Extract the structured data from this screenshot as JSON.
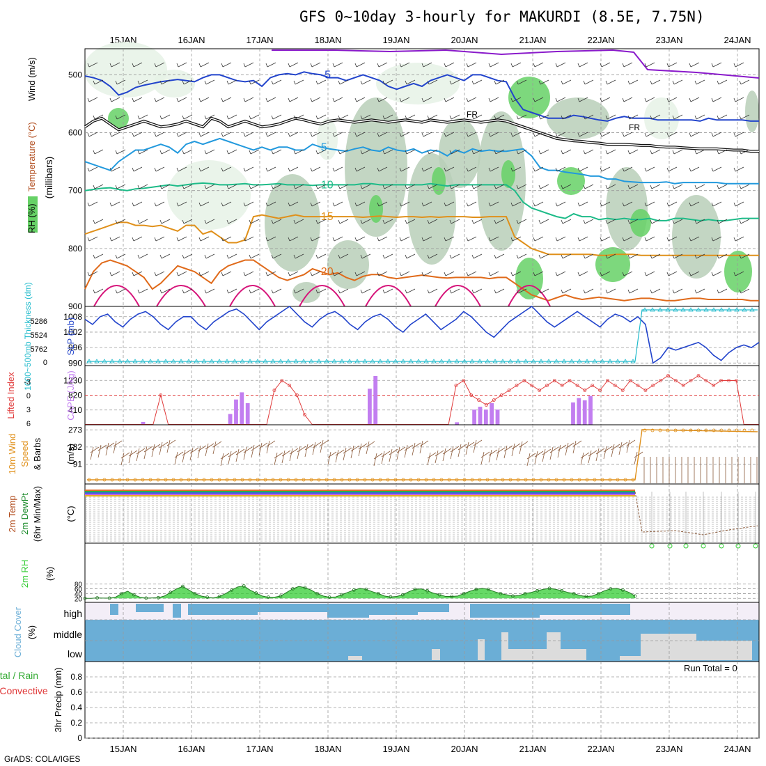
{
  "title": "GFS 0~10day 3-hourly for MAKURDI (8.5E, 7.75N)",
  "credit": "GrADS: COLA/IGES",
  "dates": [
    "15JAN",
    "16JAN",
    "17JAN",
    "18JAN",
    "19JAN",
    "20JAN",
    "21JAN",
    "22JAN",
    "23JAN",
    "24JAN"
  ],
  "colors": {
    "grid": "#9a9a9a",
    "rh_light": "#e6f2e6",
    "rh_mid": "#b9cfb9",
    "rh_dark": "#66d166",
    "slp": "#2244cc",
    "thickness": "#22bbcc",
    "cape": "#c27ef0",
    "lifted": "#e03a3a",
    "wind_speed": "#e0901a",
    "barb": "#8b5a3a",
    "rh2m": "#33cc33",
    "cloud": "#6baed6",
    "cloud_bg": "#f3eef7"
  },
  "chart_data": [
    {
      "id": "upper",
      "type": "contour",
      "ylabel": "(millibars)",
      "legend_labels": [
        "RH (%)",
        "Temperature (°C)",
        "Wind (m/s)"
      ],
      "y_ticks": [
        500,
        600,
        700,
        800,
        900
      ],
      "ylim": [
        455,
        900
      ],
      "isotherms": [
        {
          "label": "-5",
          "color": "#2244cc",
          "pressure": [
            502,
            505,
            510,
            520,
            535,
            530,
            522,
            518,
            515,
            512,
            510,
            508,
            510,
            512,
            505,
            500,
            500,
            505,
            510,
            512,
            510,
            520,
            505,
            500,
            498,
            500,
            495,
            498,
            500,
            505,
            505,
            510,
            505,
            500,
            505,
            510,
            520,
            525,
            520,
            515,
            520,
            510,
            505,
            500,
            505,
            510,
            500,
            500,
            505,
            510,
            512,
            540,
            560,
            565,
            570,
            575,
            575,
            575,
            570,
            572,
            575,
            578,
            580,
            575,
            572,
            575,
            575,
            575,
            578,
            578,
            578,
            578,
            578,
            580,
            575,
            578,
            578,
            578,
            578,
            580,
            580
          ]
        },
        {
          "label": "5",
          "color": "#2299dd",
          "pressure": [
            650,
            655,
            660,
            665,
            650,
            640,
            630,
            630,
            625,
            620,
            625,
            635,
            620,
            615,
            620,
            615,
            610,
            615,
            620,
            625,
            630,
            625,
            630,
            625,
            625,
            630,
            630,
            620,
            625,
            628,
            630,
            632,
            628,
            625,
            630,
            632,
            625,
            630,
            632,
            628,
            635,
            630,
            632,
            640,
            630,
            635,
            628,
            632,
            630,
            632,
            632,
            630,
            628,
            640,
            660,
            665,
            665,
            668,
            670,
            672,
            675,
            675,
            680,
            680,
            684,
            685,
            686,
            686,
            686,
            685,
            688,
            686,
            686,
            686,
            686,
            686,
            688,
            688,
            688,
            688,
            688
          ]
        },
        {
          "label": "10",
          "color": "#1dbb88",
          "pressure": [
            700,
            698,
            696,
            695,
            698,
            700,
            697,
            696,
            694,
            692,
            690,
            692,
            690,
            688,
            687,
            688,
            690,
            690,
            689,
            688,
            690,
            690,
            689,
            688,
            690,
            690,
            690,
            691,
            690,
            690,
            690,
            690,
            690,
            688,
            688,
            690,
            690,
            690,
            690,
            690,
            690,
            688,
            690,
            692,
            690,
            690,
            690,
            690,
            690,
            690,
            690,
            700,
            720,
            730,
            735,
            740,
            745,
            748,
            740,
            745,
            745,
            750,
            748,
            750,
            748,
            750,
            750,
            748,
            752,
            752,
            748,
            748,
            750,
            752,
            750,
            752,
            752,
            750,
            748,
            748,
            748
          ]
        },
        {
          "label": "15",
          "color": "#e0901a",
          "pressure": [
            775,
            770,
            765,
            760,
            755,
            755,
            760,
            760,
            762,
            760,
            765,
            770,
            760,
            760,
            775,
            770,
            780,
            790,
            790,
            785,
            745,
            742,
            745,
            748,
            745,
            742,
            745,
            745,
            745,
            745,
            745,
            745,
            745,
            746,
            745,
            744,
            745,
            746,
            745,
            745,
            746,
            745,
            746,
            745,
            745,
            745,
            746,
            746,
            745,
            745,
            745,
            780,
            790,
            800,
            805,
            810,
            810,
            810,
            810,
            810,
            810,
            812,
            812,
            810,
            810,
            810,
            812,
            812,
            812,
            812,
            812,
            812,
            812,
            812,
            812,
            812,
            812,
            812,
            812,
            812,
            812
          ]
        },
        {
          "label": "20",
          "color": "#e06a1a",
          "pressure": [
            870,
            840,
            825,
            820,
            825,
            830,
            840,
            850,
            870,
            860,
            845,
            830,
            835,
            840,
            850,
            860,
            840,
            830,
            825,
            820,
            820,
            830,
            840,
            850,
            855,
            850,
            845,
            835,
            840,
            845,
            842,
            850,
            855,
            848,
            845,
            845,
            850,
            852,
            850,
            848,
            846,
            848,
            850,
            851,
            850,
            850,
            850,
            850,
            852,
            850,
            850,
            860,
            870,
            880,
            885,
            890,
            885,
            880,
            885,
            888,
            886,
            884,
            886,
            888,
            890,
            888,
            886,
            886,
            888,
            890,
            890,
            888,
            886,
            886,
            888,
            888,
            888,
            888,
            888,
            890,
            890
          ]
        },
        {
          "label": "FR",
          "color": "#111111",
          "pressure": [
            590,
            580,
            575,
            585,
            595,
            590,
            585,
            580,
            585,
            590,
            588,
            585,
            580,
            585,
            590,
            575,
            580,
            590,
            585,
            580,
            585,
            590,
            588,
            585,
            580,
            575,
            578,
            582,
            585,
            580,
            578,
            580,
            582,
            580,
            578,
            580,
            582,
            580,
            578,
            580,
            582,
            578,
            580,
            582,
            580,
            578,
            580,
            582,
            580,
            578,
            580,
            585,
            590,
            595,
            600,
            605,
            610,
            612,
            614,
            615,
            617,
            618,
            620,
            620,
            620,
            621,
            622,
            622,
            624,
            625,
            625,
            626,
            627,
            628,
            628,
            628,
            629,
            630,
            630,
            632,
            632
          ]
        }
      ]
    },
    {
      "id": "slp",
      "type": "line",
      "ylabel": "SLP (mb)",
      "y2label": "1000~500mb Thickness (dm)",
      "y_ticks": [
        1008,
        1002,
        996,
        990
      ],
      "y2_ticks": [
        5286,
        5524,
        5762,
        0
      ],
      "slp": [
        1007,
        1005,
        1008,
        1009,
        1006,
        1004,
        1007,
        1009,
        1010,
        1008,
        1005,
        1003,
        1006,
        1008,
        1008,
        1005,
        1003,
        1006,
        1008,
        1010,
        1011,
        1009,
        1006,
        1003,
        1006,
        1008,
        1010,
        1012,
        1009,
        1006,
        1004,
        1007,
        1009,
        1010,
        1008,
        1005,
        1003,
        1006,
        1008,
        1009,
        1007,
        1004,
        1002,
        1005,
        1007,
        1009,
        1006,
        1003,
        1005,
        1007,
        1010,
        1008,
        1005,
        1002,
        1000,
        1003,
        1006,
        1008,
        1010,
        1012,
        1009,
        1006,
        1004,
        1006,
        1008,
        1010,
        1008,
        1006,
        1004,
        1007,
        1009,
        1008,
        1006,
        1008,
        1005,
        990,
        992,
        996,
        995,
        996,
        997,
        998,
        996,
        993,
        991,
        994,
        996,
        997,
        996,
        998
      ],
      "thickness_low": 0,
      "thickness_high": 5762
    },
    {
      "id": "cape",
      "type": "bar",
      "ylabel": "CAPE (J/kg)",
      "y2label": "Lifted Index",
      "y_ticks": [
        1230,
        820,
        410
      ],
      "y2_ticks": [
        -3,
        0,
        3,
        6
      ],
      "cape": [
        0,
        0,
        0,
        0,
        0,
        0,
        0,
        0,
        0,
        0,
        80,
        0,
        0,
        0,
        0,
        0,
        0,
        0,
        0,
        0,
        0,
        0,
        0,
        0,
        0,
        300,
        700,
        900,
        600,
        0,
        0,
        0,
        0,
        0,
        0,
        0,
        0,
        0,
        0,
        0,
        0,
        0,
        0,
        0,
        0,
        0,
        0,
        0,
        0,
        1000,
        1350,
        0,
        0,
        0,
        0,
        0,
        0,
        0,
        0,
        0,
        0,
        0,
        0,
        0,
        70,
        0,
        0,
        420,
        500,
        420,
        600,
        420,
        0,
        0,
        0,
        0,
        0,
        0,
        0,
        0,
        0,
        0,
        0,
        0,
        620,
        740,
        680,
        800,
        0,
        0,
        0,
        0,
        0,
        0,
        0,
        0,
        0,
        0,
        0,
        0,
        0,
        0,
        0,
        0,
        0,
        0,
        0,
        0,
        0,
        0,
        0,
        0,
        0,
        0,
        0,
        0,
        0
      ],
      "lifted_index": [
        6,
        6,
        6,
        6,
        6,
        6,
        6,
        6,
        6,
        6,
        0,
        6,
        6,
        6,
        6,
        6,
        6,
        6,
        6,
        6,
        6,
        6,
        6,
        6,
        6,
        -1,
        -3,
        -2,
        0,
        4,
        6,
        6,
        6,
        6,
        6,
        6,
        6,
        6,
        6,
        6,
        6,
        6,
        6,
        6,
        6,
        6,
        6,
        6,
        6,
        -2,
        -3,
        0,
        1,
        2,
        1,
        0,
        -1,
        -2,
        -3,
        -2,
        -1,
        -2,
        -3,
        -2,
        -3,
        -2,
        -1,
        -2,
        -1,
        -3,
        -2,
        -1,
        -3,
        -2,
        -1,
        -2,
        -3,
        -4,
        -3,
        -2,
        -3,
        -4,
        -3,
        -2,
        -3,
        -3,
        -3,
        6,
        6,
        6
      ]
    },
    {
      "id": "wind10m",
      "type": "line",
      "ylabel": "(m/s)",
      "y2label": "10m Wind Speed & Barbs",
      "y_ticks": [
        273,
        182,
        91
      ],
      "speed_low": 2,
      "speed_high": 270
    },
    {
      "id": "temp2m",
      "type": "line",
      "ylabel": "(°C)",
      "y2label": "2m Temp 2m DewPt (6hr Min/Max)",
      "y_ticks": [],
      "temp_level": "high",
      "drop_values": [
        -40,
        -42,
        -41,
        -43,
        -42,
        -41,
        -40
      ]
    },
    {
      "id": "rh2m",
      "type": "area",
      "ylabel": "(%)",
      "y2label": "2m RH",
      "y_ticks": [
        80,
        60,
        40,
        20
      ],
      "rh": [
        20,
        20,
        22,
        21,
        21,
        25,
        40,
        50,
        35,
        25,
        21,
        22,
        23,
        30,
        45,
        60,
        70,
        55,
        40,
        30,
        25,
        22,
        28,
        40,
        55,
        68,
        72,
        55,
        42,
        30,
        25,
        25,
        30,
        45,
        60,
        70,
        65,
        55,
        40,
        30,
        25,
        26,
        35,
        45,
        55,
        62,
        58,
        48,
        40,
        30,
        26,
        28,
        35,
        48,
        58,
        60,
        52,
        42,
        35,
        28,
        28,
        30,
        40,
        50,
        58,
        62,
        58,
        48,
        40,
        35,
        30,
        32,
        40,
        45,
        52,
        58,
        62,
        58,
        52,
        45,
        40,
        32,
        28,
        30,
        40,
        52,
        60,
        62,
        55,
        45,
        30
      ]
    },
    {
      "id": "cloud",
      "type": "table",
      "ylabel": "Cloud Cover (%)",
      "layers": [
        "high",
        "middle",
        "low"
      ]
    },
    {
      "id": "precip",
      "type": "bar",
      "ylabel": "3hr Precip (mm)",
      "y2label": "Total / Rain Convective",
      "y_ticks": [
        0.8,
        0.6,
        0.4,
        0.2,
        0
      ],
      "ylim": [
        0,
        1
      ],
      "run_total": "Run Total = 0",
      "values": []
    }
  ]
}
